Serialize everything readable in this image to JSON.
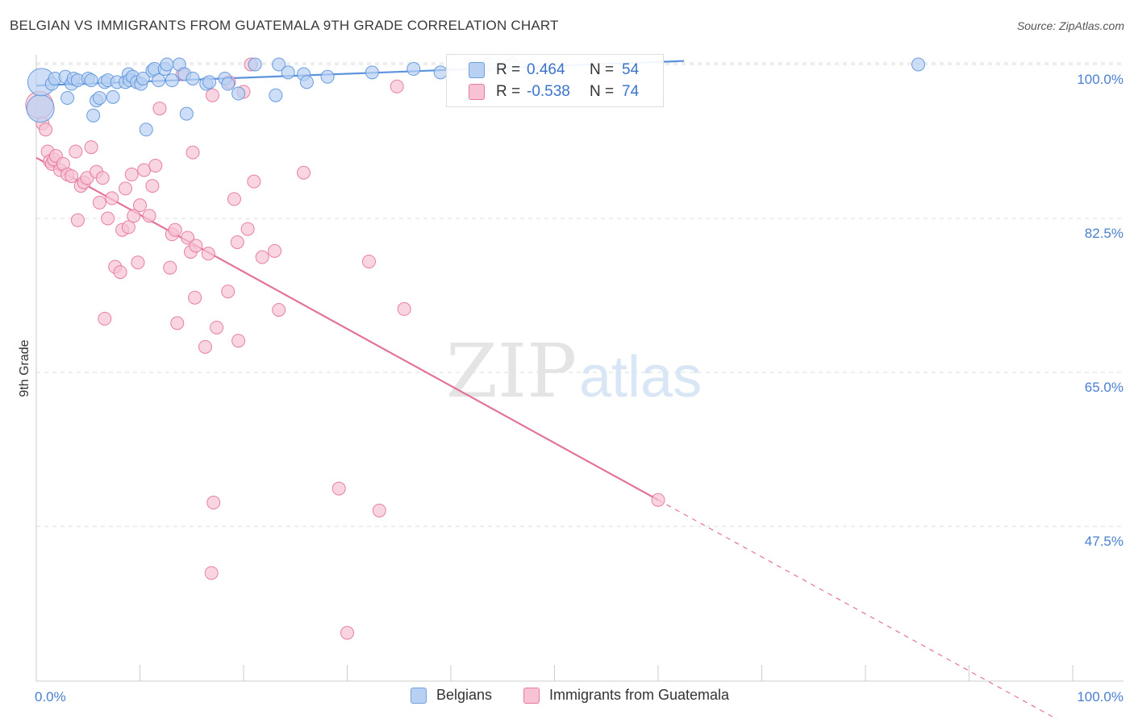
{
  "title": "BELGIAN VS IMMIGRANTS FROM GUATEMALA 9TH GRADE CORRELATION CHART",
  "source": "Source: ZipAtlas.com",
  "watermark": {
    "zip": "ZIP",
    "atlas": "atlas"
  },
  "legend": {
    "r_label": "R =",
    "n_label": "N =",
    "rows": [
      {
        "r": "0.464",
        "n": "54",
        "color": "#6fa0e0",
        "fill": "#b8d0f2"
      },
      {
        "r": "-0.538",
        "n": "74",
        "color": "#e87aa0",
        "fill": "#f7c3d4"
      }
    ]
  },
  "bottom_legend": [
    {
      "label": "Belgians",
      "color": "#6fa0e0",
      "fill": "#b8d0f2"
    },
    {
      "label": "Immigrants from Guatemala",
      "color": "#e87aa0",
      "fill": "#f7c3d4"
    }
  ],
  "chart_data": {
    "type": "scatter",
    "title": "BELGIAN VS IMMIGRANTS FROM GUATEMALA 9TH GRADE CORRELATION CHART",
    "xlabel": "",
    "ylabel": "9th Grade",
    "xlim": [
      0,
      100
    ],
    "ylim": [
      30,
      101.5
    ],
    "x_tick_labels": [
      "0.0%",
      "100.0%"
    ],
    "y_ticks": [
      47.5,
      65.0,
      82.5,
      100.0
    ],
    "y_tick_labels": [
      "47.5%",
      "65.0%",
      "82.5%",
      "100.0%"
    ],
    "series": [
      {
        "name": "Belgians",
        "color": "#5b93dc",
        "fill": "#b8d0f2",
        "trend": {
          "x0": 0,
          "y0": 97.6,
          "x1": 62.5,
          "y1": 100.4,
          "style": "solid"
        },
        "points": [
          [
            0.4,
            95.0
          ],
          [
            0.5,
            98.0
          ],
          [
            1.5,
            97.8
          ],
          [
            1.8,
            98.4
          ],
          [
            2.8,
            98.6
          ],
          [
            3.0,
            96.2
          ],
          [
            3.4,
            97.8
          ],
          [
            3.6,
            98.4
          ],
          [
            4.0,
            98.2
          ],
          [
            5.0,
            98.4
          ],
          [
            5.3,
            98.2
          ],
          [
            5.5,
            94.2
          ],
          [
            5.8,
            95.9
          ],
          [
            6.1,
            96.2
          ],
          [
            6.6,
            98.0
          ],
          [
            6.9,
            98.2
          ],
          [
            7.4,
            96.3
          ],
          [
            7.8,
            98.0
          ],
          [
            8.6,
            98.0
          ],
          [
            8.9,
            98.9
          ],
          [
            9.0,
            98.2
          ],
          [
            9.3,
            98.6
          ],
          [
            9.7,
            98.0
          ],
          [
            10.1,
            97.8
          ],
          [
            10.3,
            98.4
          ],
          [
            10.6,
            92.6
          ],
          [
            11.2,
            99.3
          ],
          [
            11.4,
            99.5
          ],
          [
            11.8,
            98.2
          ],
          [
            12.4,
            99.5
          ],
          [
            12.6,
            100.0
          ],
          [
            13.1,
            98.2
          ],
          [
            13.8,
            100.0
          ],
          [
            14.3,
            98.9
          ],
          [
            14.5,
            94.4
          ],
          [
            15.1,
            98.4
          ],
          [
            16.4,
            97.8
          ],
          [
            16.7,
            98.0
          ],
          [
            18.2,
            98.4
          ],
          [
            18.5,
            97.8
          ],
          [
            19.5,
            96.7
          ],
          [
            21.1,
            100.0
          ],
          [
            23.1,
            96.5
          ],
          [
            23.4,
            100.0
          ],
          [
            24.3,
            99.1
          ],
          [
            25.8,
            98.9
          ],
          [
            26.1,
            98.0
          ],
          [
            28.1,
            98.6
          ],
          [
            32.4,
            99.1
          ],
          [
            36.4,
            99.5
          ],
          [
            39.0,
            99.1
          ],
          [
            43.6,
            100.0
          ],
          [
            45.9,
            100.0
          ],
          [
            85.1,
            100.0
          ]
        ]
      },
      {
        "name": "Immigrants from Guatemala",
        "color": "#e4739a",
        "fill": "#f7c3d4",
        "trend": {
          "x0": 0,
          "y0": 89.4,
          "x1": 60.0,
          "y1": 50.5,
          "style": "solid",
          "dash_to_x": 100.0,
          "dash_to_y": 24.6
        },
        "points": [
          [
            0.3,
            95.4
          ],
          [
            0.6,
            93.3
          ],
          [
            0.9,
            92.6
          ],
          [
            1.1,
            90.1
          ],
          [
            1.3,
            89.0
          ],
          [
            1.5,
            88.7
          ],
          [
            1.7,
            89.2
          ],
          [
            1.9,
            89.6
          ],
          [
            2.3,
            88.0
          ],
          [
            2.6,
            88.7
          ],
          [
            3.0,
            87.5
          ],
          [
            3.4,
            87.3
          ],
          [
            3.8,
            90.1
          ],
          [
            4.0,
            82.3
          ],
          [
            4.3,
            86.2
          ],
          [
            4.6,
            86.6
          ],
          [
            4.9,
            87.1
          ],
          [
            5.3,
            90.6
          ],
          [
            5.8,
            87.8
          ],
          [
            6.1,
            84.3
          ],
          [
            6.4,
            87.1
          ],
          [
            6.6,
            71.1
          ],
          [
            6.9,
            82.5
          ],
          [
            7.3,
            84.8
          ],
          [
            7.6,
            77.0
          ],
          [
            8.1,
            76.4
          ],
          [
            8.3,
            81.2
          ],
          [
            8.6,
            85.9
          ],
          [
            8.9,
            81.5
          ],
          [
            9.2,
            87.5
          ],
          [
            9.4,
            82.8
          ],
          [
            9.8,
            77.5
          ],
          [
            10.0,
            84.0
          ],
          [
            10.4,
            88.0
          ],
          [
            10.9,
            82.8
          ],
          [
            11.2,
            86.2
          ],
          [
            11.5,
            88.5
          ],
          [
            11.9,
            95.0
          ],
          [
            12.9,
            76.9
          ],
          [
            13.1,
            80.7
          ],
          [
            13.4,
            81.2
          ],
          [
            13.6,
            70.6
          ],
          [
            14.1,
            98.9
          ],
          [
            14.6,
            80.3
          ],
          [
            14.9,
            78.7
          ],
          [
            15.1,
            90.0
          ],
          [
            15.3,
            73.5
          ],
          [
            15.4,
            79.4
          ],
          [
            16.3,
            67.9
          ],
          [
            16.6,
            78.5
          ],
          [
            17.1,
            50.2
          ],
          [
            17.4,
            70.1
          ],
          [
            18.5,
            74.2
          ],
          [
            19.1,
            84.7
          ],
          [
            19.4,
            79.8
          ],
          [
            19.5,
            68.6
          ],
          [
            20.0,
            96.9
          ],
          [
            20.4,
            81.3
          ],
          [
            21.0,
            86.7
          ],
          [
            21.8,
            78.1
          ],
          [
            23.0,
            78.8
          ],
          [
            23.4,
            72.1
          ],
          [
            25.8,
            87.7
          ],
          [
            29.2,
            51.8
          ],
          [
            32.1,
            77.6
          ],
          [
            33.1,
            49.3
          ],
          [
            34.8,
            97.5
          ],
          [
            35.5,
            72.2
          ],
          [
            16.9,
            42.2
          ],
          [
            18.6,
            98.0
          ],
          [
            20.7,
            100.0
          ],
          [
            60.0,
            50.5
          ],
          [
            30.0,
            35.4
          ],
          [
            17.0,
            96.5
          ]
        ]
      }
    ]
  }
}
